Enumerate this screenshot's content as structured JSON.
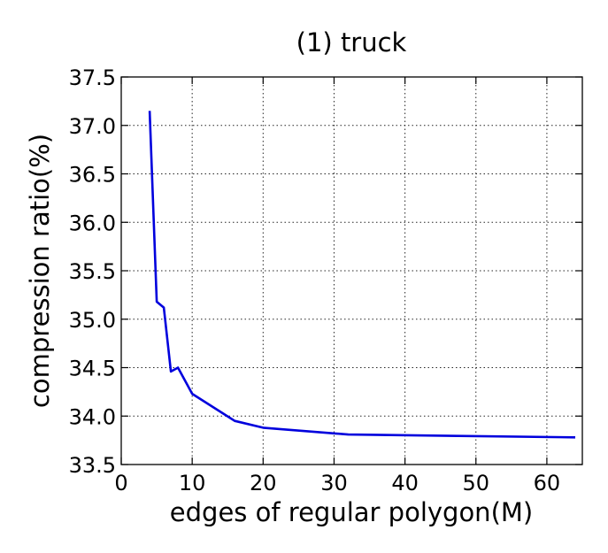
{
  "chart_data": {
    "type": "line",
    "title": "(1) truck",
    "xlabel": "edges of regular polygon(M)",
    "ylabel": "compression ratio(%)",
    "xlim": [
      0,
      65
    ],
    "ylim": [
      33.5,
      37.5
    ],
    "xticks": [
      0,
      10,
      20,
      30,
      40,
      50,
      60
    ],
    "xtick_labels": [
      "0",
      "10",
      "20",
      "30",
      "40",
      "50",
      "60"
    ],
    "yticks": [
      33.5,
      34.0,
      34.5,
      35.0,
      35.5,
      36.0,
      36.5,
      37.0,
      37.5
    ],
    "ytick_labels": [
      "33.5",
      "34.0",
      "34.5",
      "35.0",
      "35.5",
      "36.0",
      "36.5",
      "37.0",
      "37.5"
    ],
    "grid": true,
    "series": [
      {
        "color": "#0000dd",
        "x": [
          4,
          5,
          6,
          7,
          8,
          10,
          16,
          20,
          32,
          64
        ],
        "y": [
          37.15,
          35.18,
          35.12,
          34.46,
          34.5,
          34.23,
          33.95,
          33.88,
          33.81,
          33.78
        ]
      }
    ]
  }
}
